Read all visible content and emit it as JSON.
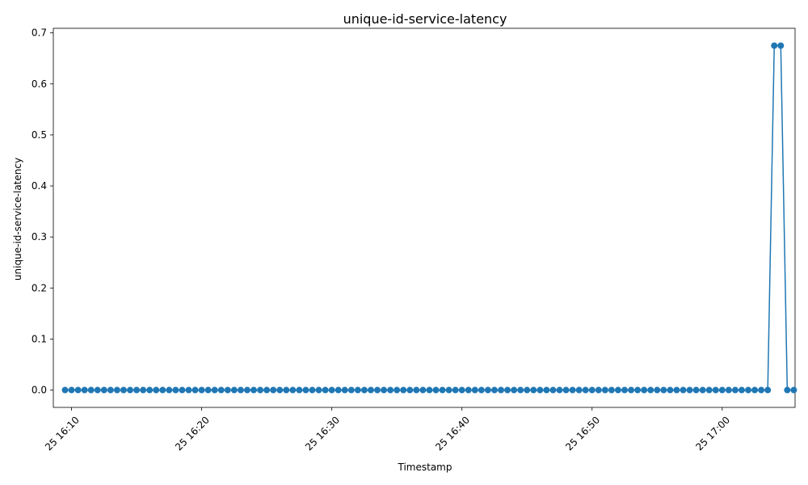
{
  "chart_data": {
    "type": "line",
    "title": "unique-id-service-latency",
    "xlabel": "Timestamp",
    "ylabel": "unique-id-service-latency",
    "x_start": "2024-??-25 16:09:30",
    "x_interval_seconds": 30,
    "x_range_minutes": [
      8.6,
      65.6
    ],
    "ylim": [
      -0.034,
      0.709
    ],
    "x_ticks": [
      {
        "minute": 10,
        "label": "25 16:10"
      },
      {
        "minute": 20,
        "label": "25 16:20"
      },
      {
        "minute": 30,
        "label": "25 16:30"
      },
      {
        "minute": 40,
        "label": "25 16:40"
      },
      {
        "minute": 50,
        "label": "25 16:50"
      },
      {
        "minute": 60,
        "label": "25 17:00"
      }
    ],
    "y_ticks": [
      {
        "value": 0.0,
        "label": "0.0"
      },
      {
        "value": 0.1,
        "label": "0.1"
      },
      {
        "value": 0.2,
        "label": "0.2"
      },
      {
        "value": 0.3,
        "label": "0.3"
      },
      {
        "value": 0.4,
        "label": "0.4"
      },
      {
        "value": 0.5,
        "label": "0.5"
      },
      {
        "value": 0.6,
        "label": "0.6"
      },
      {
        "value": 0.7,
        "label": "0.7"
      }
    ],
    "grid": false,
    "series": [
      {
        "color": "#1f77b4",
        "x_minutes": [
          9.5,
          10.0,
          10.5,
          11.0,
          11.5,
          12.0,
          12.5,
          13.0,
          13.5,
          14.0,
          14.5,
          15.0,
          15.5,
          16.0,
          16.5,
          17.0,
          17.5,
          18.0,
          18.5,
          19.0,
          19.5,
          20.0,
          20.5,
          21.0,
          21.5,
          22.0,
          22.5,
          23.0,
          23.5,
          24.0,
          24.5,
          25.0,
          25.5,
          26.0,
          26.5,
          27.0,
          27.5,
          28.0,
          28.5,
          29.0,
          29.5,
          30.0,
          30.5,
          31.0,
          31.5,
          32.0,
          32.5,
          33.0,
          33.5,
          34.0,
          34.5,
          35.0,
          35.5,
          36.0,
          36.5,
          37.0,
          37.5,
          38.0,
          38.5,
          39.0,
          39.5,
          40.0,
          40.5,
          41.0,
          41.5,
          42.0,
          42.5,
          43.0,
          43.5,
          44.0,
          44.5,
          45.0,
          45.5,
          46.0,
          46.5,
          47.0,
          47.5,
          48.0,
          48.5,
          49.0,
          49.5,
          50.0,
          50.5,
          51.0,
          51.5,
          52.0,
          52.5,
          53.0,
          53.5,
          54.0,
          54.5,
          55.0,
          55.5,
          56.0,
          56.5,
          57.0,
          57.5,
          58.0,
          58.5,
          59.0,
          59.5,
          60.0,
          60.5,
          61.0,
          61.5,
          62.0,
          62.5,
          63.0,
          63.5,
          64.0,
          64.5,
          65.0,
          65.5
        ],
        "values": [
          0,
          0,
          0,
          0,
          0,
          0,
          0,
          0,
          0,
          0,
          0,
          0,
          0,
          0,
          0,
          0,
          0,
          0,
          0,
          0,
          0,
          0,
          0,
          0,
          0,
          0,
          0,
          0,
          0,
          0,
          0,
          0,
          0,
          0,
          0,
          0,
          0,
          0,
          0,
          0,
          0,
          0,
          0,
          0,
          0,
          0,
          0,
          0,
          0,
          0,
          0,
          0,
          0,
          0,
          0,
          0,
          0,
          0,
          0,
          0,
          0,
          0,
          0,
          0,
          0,
          0,
          0,
          0,
          0,
          0,
          0,
          0,
          0,
          0,
          0,
          0,
          0,
          0,
          0,
          0,
          0,
          0,
          0,
          0,
          0,
          0,
          0,
          0,
          0,
          0,
          0,
          0,
          0,
          0,
          0,
          0,
          0,
          0,
          0,
          0,
          0,
          0,
          0,
          0,
          0,
          0,
          0,
          0,
          0,
          0.675,
          0.675,
          0,
          0
        ]
      }
    ]
  }
}
